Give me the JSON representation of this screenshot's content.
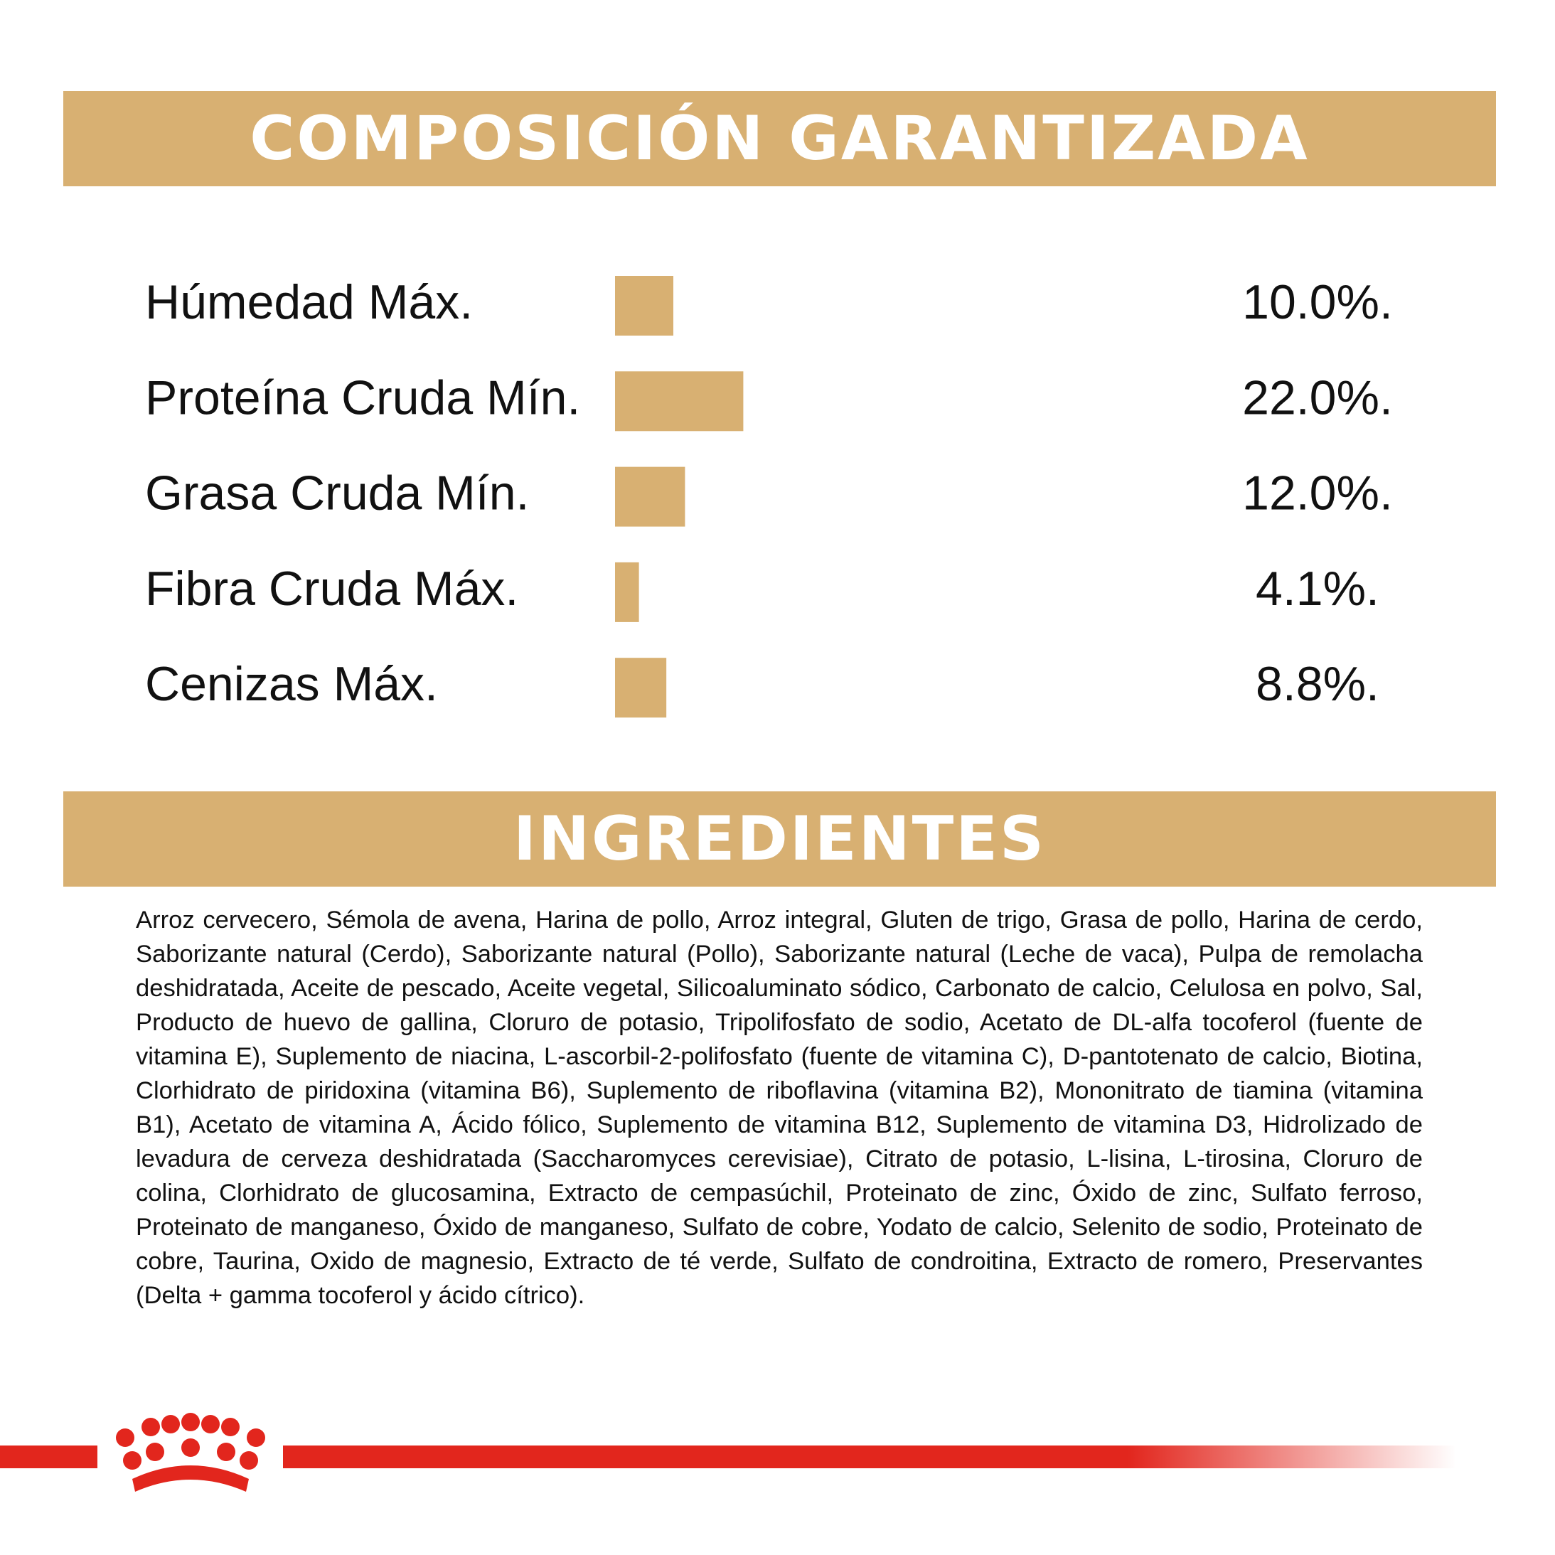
{
  "header": {
    "title": "COMPOSICIÓN GARANTIZADA"
  },
  "chart_data": {
    "type": "bar",
    "categories": [
      "Húmedad Máx.",
      "Proteína Cruda Mín.",
      "Grasa Cruda Mín.",
      "Fibra Cruda Máx.",
      "Cenizas Máx."
    ],
    "values": [
      10,
      22,
      12,
      4.1,
      8.8
    ],
    "value_labels": [
      "10.0%.",
      "22.0%.",
      "12.0%.",
      "4.1%.",
      "8.8%."
    ],
    "color": "#d8b072"
  },
  "ingredients": {
    "title": "INGREDIENTES",
    "text": "Arroz cervecero, Sémola de avena, Harina de pollo, Arroz integral, Gluten de trigo, Grasa de pollo, Harina de cerdo, Saborizante natural (Cerdo), Saborizante natural (Pollo), Saborizante natural (Leche de vaca), Pulpa de remolacha deshidratada, Aceite de pescado, Aceite vegetal, Silicoaluminato sódico, Carbonato de calcio, Celulosa en polvo, Sal, Producto de huevo de gallina, Cloruro de potasio, Tripolifosfato de sodio, Acetato de DL-alfa tocoferol (fuente de vitamina E), Suplemento de niacina, L-ascorbil-2-polifosfato (fuente de vitamina C), D-pantotenato de calcio, Biotina, Clorhidrato de piridoxina (vitamina B6), Suplemento de riboflavina (vitamina B2), Mononitrato de tiamina (vitamina B1), Acetato de vitamina A, Ácido fólico, Suplemento de vitamina B12, Suplemento de vitamina D3, Hidrolizado de levadura de cerveza deshidratada (Saccharomyces cerevisiae), Citrato de potasio, L-lisina, L-tirosina, Cloruro de colina, Clorhidrato de glucosamina, Extracto de cempasúchil, Proteinato de zinc, Óxido de zinc, Sulfato ferroso, Proteinato de manganeso, Óxido de manganeso, Sulfato de cobre, Yodato de calcio, Selenito de sodio, Proteinato de cobre, Taurina, Oxido de magnesio, Extracto de té verde, Sulfato de condroitina, Extracto de romero, Preservantes (Delta + gamma tocoferol y ácido cítrico)."
  }
}
